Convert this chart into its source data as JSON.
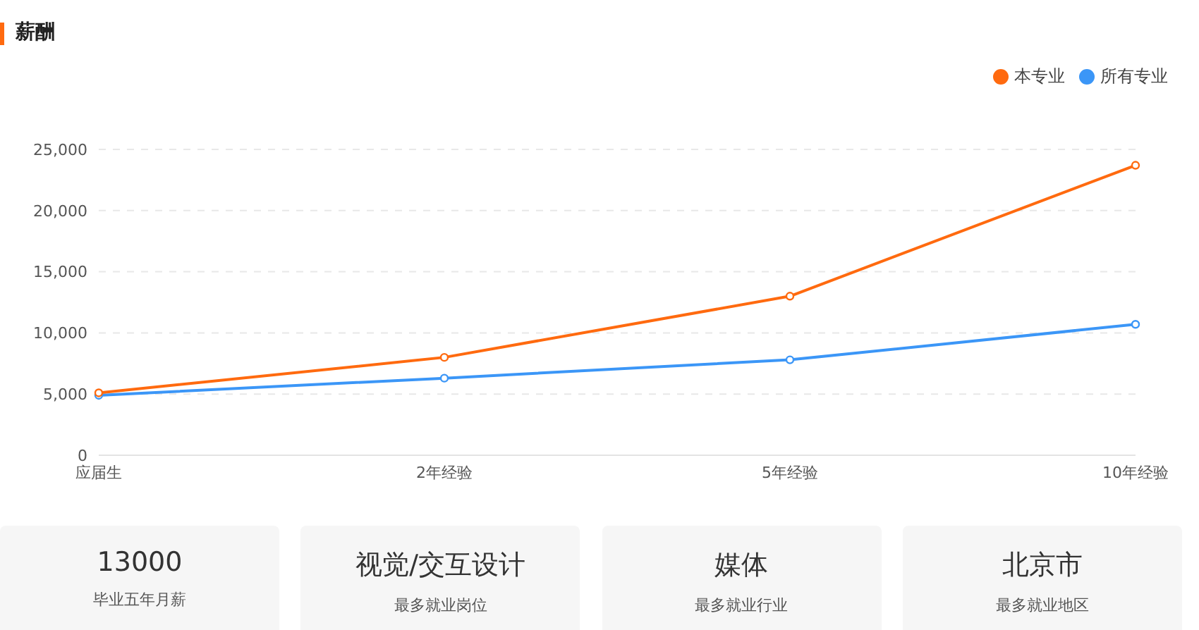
{
  "chart_data": {
    "type": "line",
    "title": "薪酬",
    "categories": [
      "应届生",
      "2年经验",
      "5年经验",
      "10年经验"
    ],
    "series": [
      {
        "name": "本专业",
        "color": "#ff6a0f",
        "values": [
          5100,
          8000,
          13000,
          23700
        ]
      },
      {
        "name": "所有专业",
        "color": "#3b96f7",
        "values": [
          4900,
          6300,
          7800,
          10700
        ]
      }
    ],
    "ylim": [
      0,
      25000
    ],
    "yticks": [
      0,
      {
        "value": 5000,
        "label": "5,000"
      },
      {
        "value": 10000,
        "label": "10,000"
      },
      {
        "value": 15000,
        "label": "15,000"
      },
      {
        "value": 20000,
        "label": "20,000"
      },
      {
        "value": 25000,
        "label": "25,000"
      }
    ],
    "grid": "y",
    "legend": "top right",
    "marker": "circle",
    "line_style": "solid",
    "annotations": [
      "13000",
      "毕业五年月薪",
      "视觉/交互设计",
      "最多就业岗位",
      "媒体",
      "最多就业行业",
      "北京市",
      "最多就业地区"
    ]
  }
}
